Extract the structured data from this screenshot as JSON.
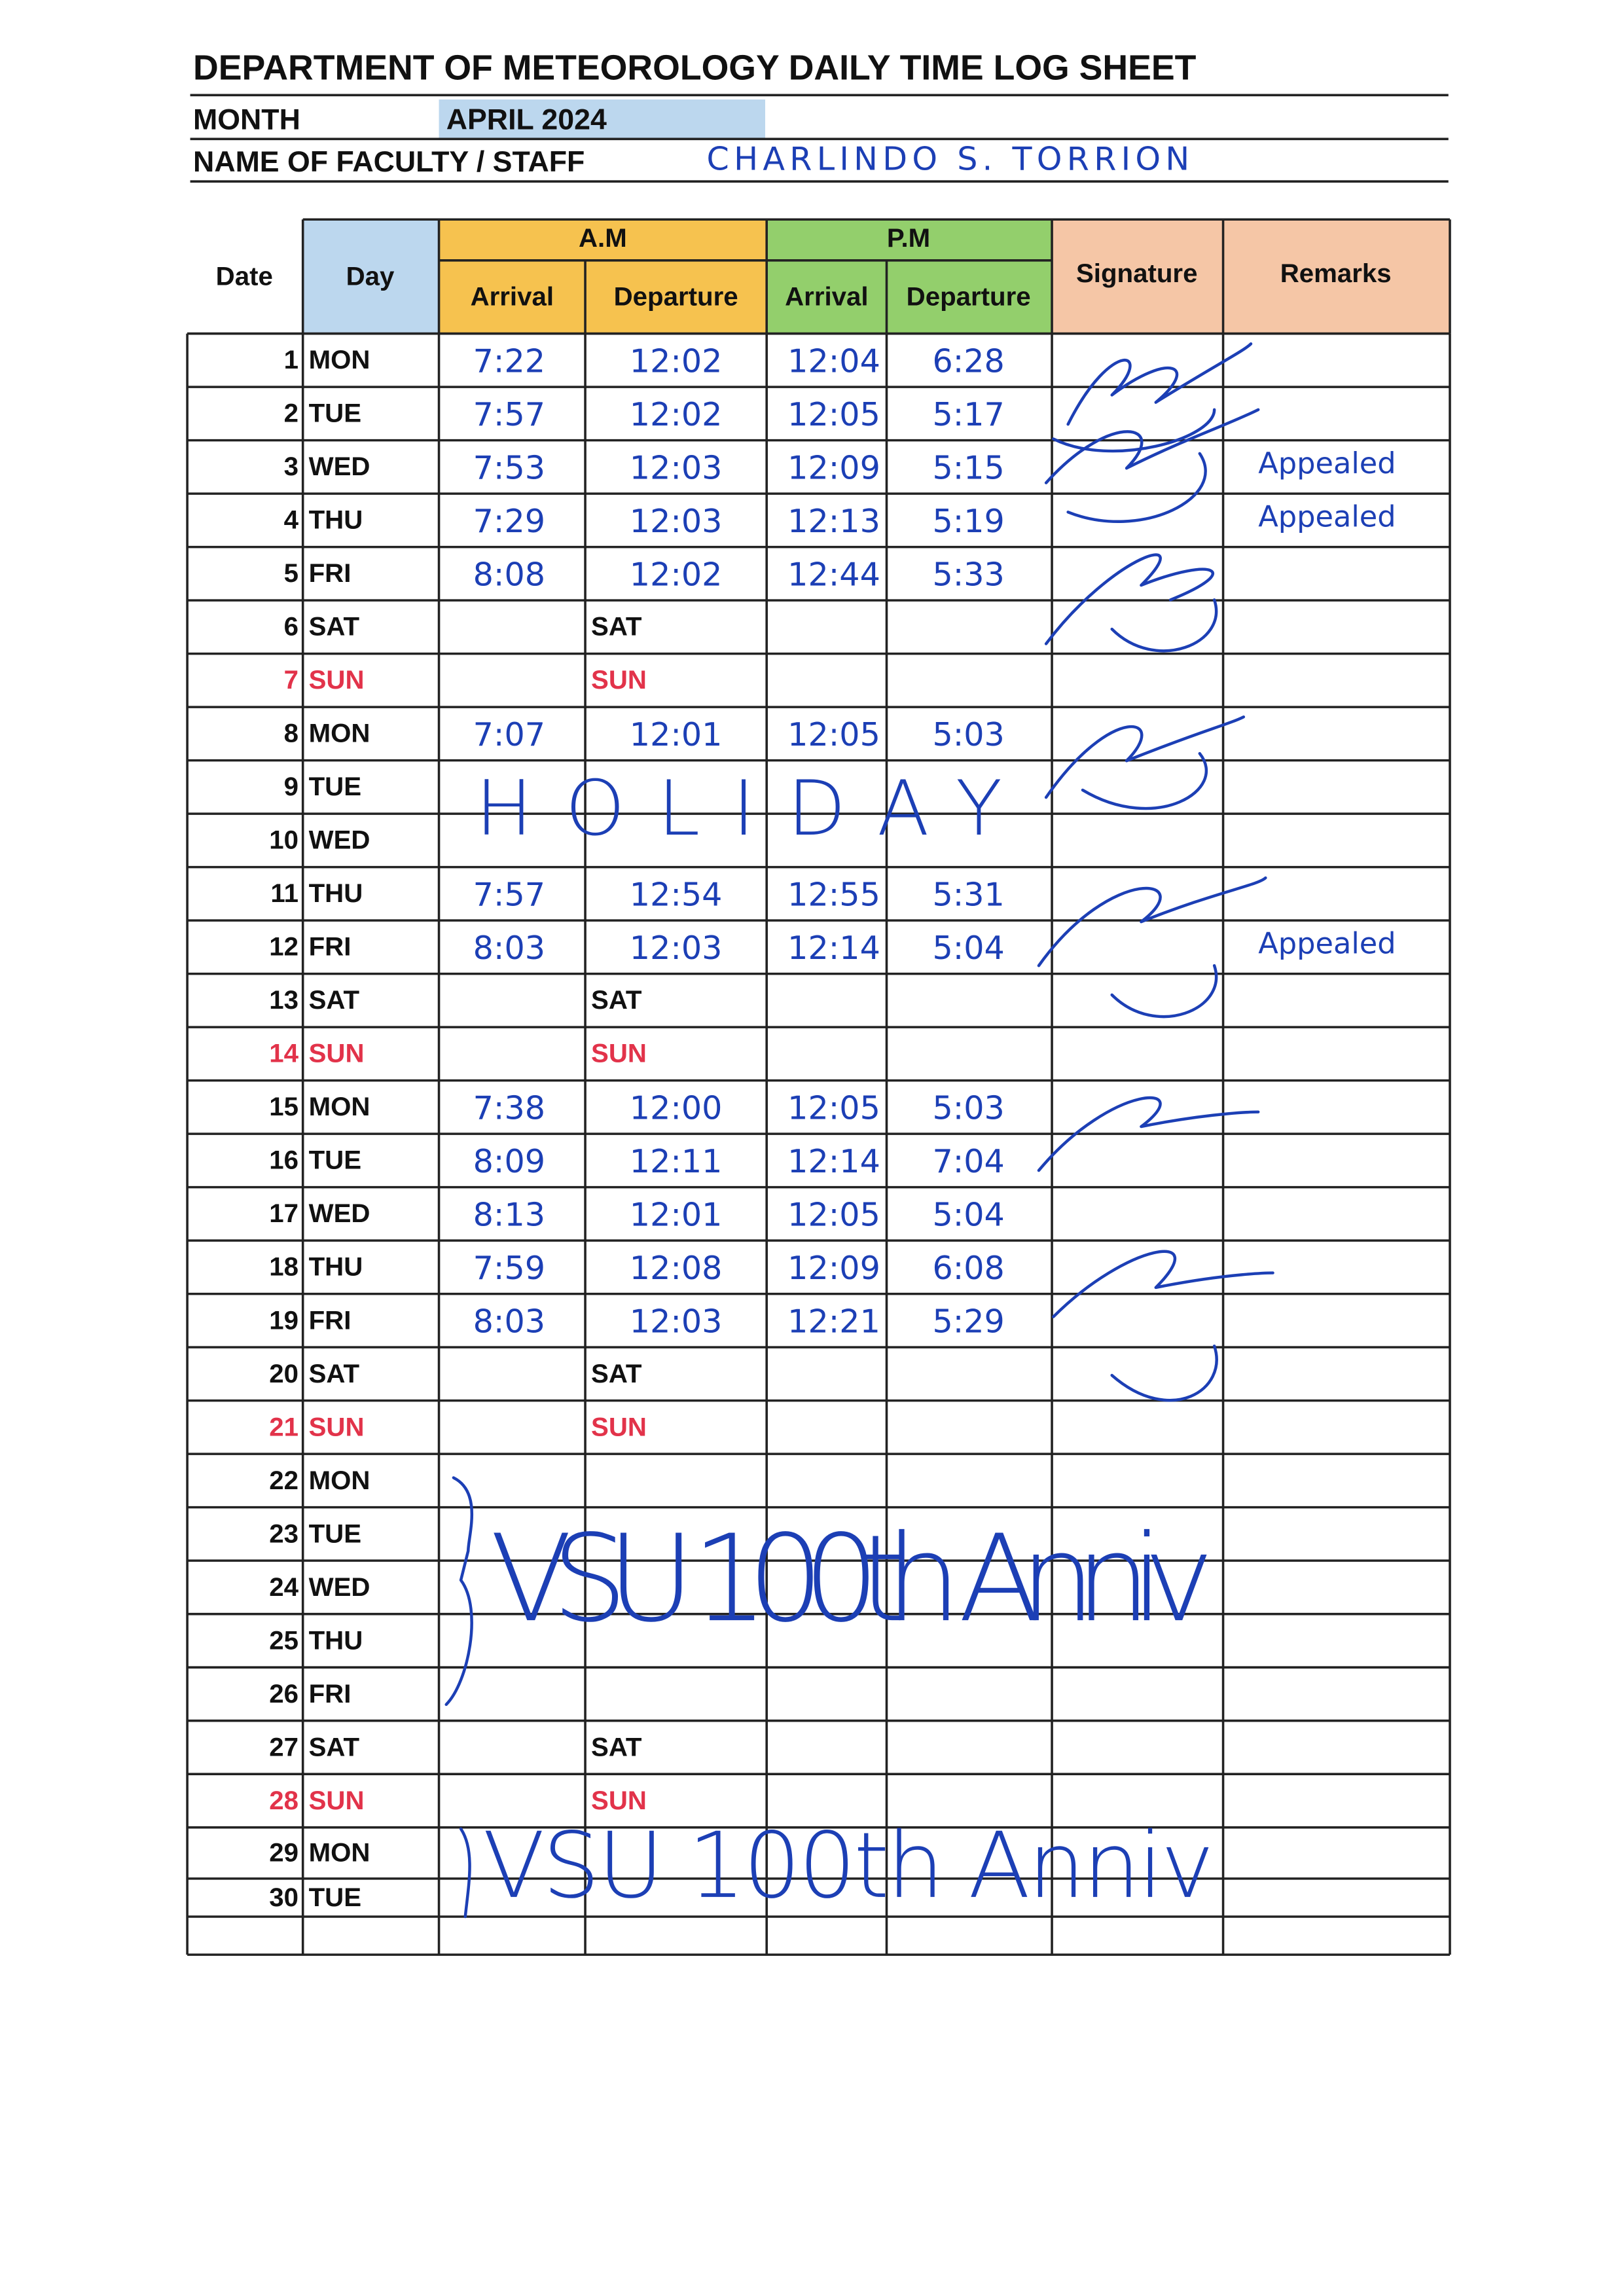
{
  "header": {
    "title": "DEPARTMENT OF METEOROLOGY DAILY TIME LOG SHEET",
    "month_label": "MONTH",
    "month": "APRIL 2024",
    "name_label": "NAME OF FACULTY / STAFF",
    "name": "CHARLINDO S. TORRION"
  },
  "table": {
    "columns": {
      "date": "Date",
      "day": "Day",
      "am": "A.M",
      "pm": "P.M",
      "am_arrival": "Arrival",
      "am_departure": "Departure",
      "pm_arrival": "Arrival",
      "pm_departure": "Departure",
      "signature": "Signature",
      "remarks": "Remarks"
    },
    "weekend_color": "#e2334a",
    "rows": [
      {
        "date": 1,
        "day": "MON",
        "am_arrival": "7:22",
        "am_departure": "12:02",
        "pm_arrival": "12:04",
        "pm_departure": "6:28"
      },
      {
        "date": 2,
        "day": "TUE",
        "am_arrival": "7:57",
        "am_departure": "12:02",
        "pm_arrival": "12:05",
        "pm_departure": "5:17"
      },
      {
        "date": 3,
        "day": "WED",
        "am_arrival": "7:53",
        "am_departure": "12:03",
        "pm_arrival": "12:09",
        "pm_departure": "5:15",
        "remarks": "Appealed"
      },
      {
        "date": 4,
        "day": "THU",
        "am_arrival": "7:29",
        "am_departure": "12:03",
        "pm_arrival": "12:13",
        "pm_departure": "5:19",
        "remarks": "Appealed"
      },
      {
        "date": 5,
        "day": "FRI",
        "am_arrival": "8:08",
        "am_departure": "12:02",
        "pm_arrival": "12:44",
        "pm_departure": "5:33"
      },
      {
        "date": 6,
        "day": "SAT",
        "am_departure": "SAT"
      },
      {
        "date": 7,
        "day": "SUN",
        "am_departure": "SUN",
        "red": true
      },
      {
        "date": 8,
        "day": "MON",
        "am_arrival": "7:07",
        "am_departure": "12:01",
        "pm_arrival": "12:05",
        "pm_departure": "5:03"
      },
      {
        "date": 9,
        "day": "TUE"
      },
      {
        "date": 10,
        "day": "WED"
      },
      {
        "date": 11,
        "day": "THU",
        "am_arrival": "7:57",
        "am_departure": "12:54",
        "pm_arrival": "12:55",
        "pm_departure": "5:31"
      },
      {
        "date": 12,
        "day": "FRI",
        "am_arrival": "8:03",
        "am_departure": "12:03",
        "pm_arrival": "12:14",
        "pm_departure": "5:04",
        "remarks": "Appealed"
      },
      {
        "date": 13,
        "day": "SAT",
        "am_departure": "SAT"
      },
      {
        "date": 14,
        "day": "SUN",
        "am_departure": "SUN",
        "red": true
      },
      {
        "date": 15,
        "day": "MON",
        "am_arrival": "7:38",
        "am_departure": "12:00",
        "pm_arrival": "12:05",
        "pm_departure": "5:03"
      },
      {
        "date": 16,
        "day": "TUE",
        "am_arrival": "8:09",
        "am_departure": "12:11",
        "pm_arrival": "12:14",
        "pm_departure": "7:04"
      },
      {
        "date": 17,
        "day": "WED",
        "am_arrival": "8:13",
        "am_departure": "12:01",
        "pm_arrival": "12:05",
        "pm_departure": "5:04"
      },
      {
        "date": 18,
        "day": "THU",
        "am_arrival": "7:59",
        "am_departure": "12:08",
        "pm_arrival": "12:09",
        "pm_departure": "6:08"
      },
      {
        "date": 19,
        "day": "FRI",
        "am_arrival": "8:03",
        "am_departure": "12:03",
        "pm_arrival": "12:21",
        "pm_departure": "5:29"
      },
      {
        "date": 20,
        "day": "SAT",
        "am_departure": "SAT"
      },
      {
        "date": 21,
        "day": "SUN",
        "am_departure": "SUN",
        "red": true
      },
      {
        "date": 22,
        "day": "MON"
      },
      {
        "date": 23,
        "day": "TUE"
      },
      {
        "date": 24,
        "day": "WED"
      },
      {
        "date": 25,
        "day": "THU"
      },
      {
        "date": 26,
        "day": "FRI"
      },
      {
        "date": 27,
        "day": "SAT",
        "am_departure": "SAT"
      },
      {
        "date": 28,
        "day": "SUN",
        "am_departure": "SUN",
        "red": true
      },
      {
        "date": 29,
        "day": "MON"
      },
      {
        "date": 30,
        "day": "TUE"
      }
    ]
  },
  "annotations": [
    "HOLIDAY",
    "VSU 100th Anniv",
    "VSU 100th Anniv"
  ]
}
